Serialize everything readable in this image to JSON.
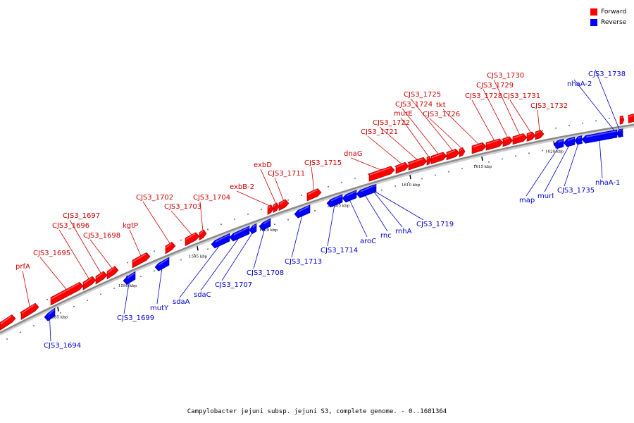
{
  "caption": "Campylobacter jejuni subsp. jejuni S3, complete genome. - 0..1681364",
  "legend": [
    {
      "label": "Forward",
      "color": "#ff0000"
    },
    {
      "label": "Reverse",
      "color": "#0000ff"
    }
  ],
  "colors": {
    "forward": "#ff0000",
    "reverse": "#0000ff",
    "label_forward": "#cc0000",
    "label_reverse": "#0000cc",
    "axis": "#8a8a8a"
  },
  "scale_ticks": [
    {
      "label": "1585 kbp",
      "kbp": 1585
    },
    {
      "label": "1590 kbp",
      "kbp": 1590
    },
    {
      "label": "1595 kbp",
      "kbp": 1595
    },
    {
      "label": "1600 kbp",
      "kbp": 1600
    },
    {
      "label": "1605 kbp",
      "kbp": 1605
    },
    {
      "label": "1610 kbp",
      "kbp": 1610
    },
    {
      "label": "1615 kbp",
      "kbp": 1615
    },
    {
      "label": "1620 kbp",
      "kbp": 1620
    }
  ],
  "forward_genes": [
    "prfA",
    "CJS3_1695",
    "CJS3_1696",
    "CJS3_1697",
    "CJS3_1698",
    "kgtP",
    "CJS3_1702",
    "CJS3_1703",
    "CJS3_1704",
    "exbB-2",
    "exbD",
    "CJS3_1711",
    "CJS3_1715",
    "dnaG",
    "CJS3_1721",
    "CJS3_1722",
    "murE",
    "CJS3_1724",
    "CJS3_1725",
    "CJS3_1726",
    "tkt",
    "CJS3_1728",
    "CJS3_1729",
    "CJS3_1730",
    "CJS3_1731",
    "CJS3_1732"
  ],
  "reverse_genes": [
    "CJS3_1694",
    "CJS3_1699",
    "mutY",
    "sdaA",
    "sdaC",
    "CJS3_1707",
    "CJS3_1708",
    "CJS3_1713",
    "CJS3_1714",
    "aroC",
    "rnc",
    "rnhA",
    "CJS3_1719",
    "map",
    "murI",
    "CJS3_1735",
    "nhaA-1",
    "nhaA-2",
    "CJS3_1738"
  ]
}
